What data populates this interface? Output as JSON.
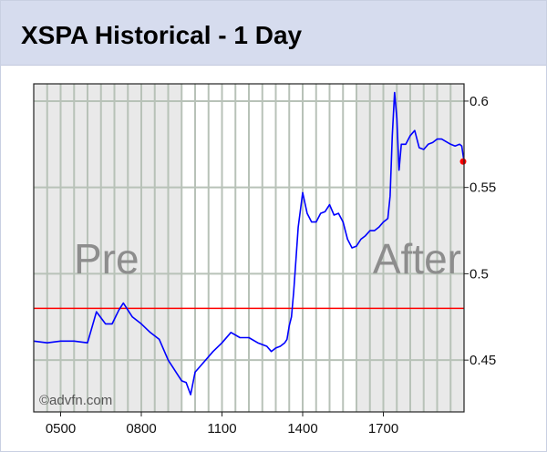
{
  "header": {
    "title": "XSPA Historical - 1 Day"
  },
  "chart_data": {
    "type": "line",
    "series": [
      {
        "x": [
          "04:00",
          "04:30",
          "05:00",
          "05:30",
          "06:00",
          "06:20",
          "06:40",
          "06:55",
          "07:10",
          "07:20",
          "07:40",
          "08:00",
          "08:20",
          "08:40",
          "08:50",
          "09:00",
          "09:10",
          "09:20",
          "09:30",
          "09:40",
          "09:50",
          "10:00",
          "10:20",
          "10:40",
          "11:00",
          "11:20",
          "11:40",
          "12:00",
          "12:20",
          "12:40",
          "12:50",
          "13:00",
          "13:10",
          "13:20",
          "13:25",
          "13:30",
          "13:35",
          "13:40",
          "13:45",
          "13:50",
          "14:00",
          "14:10",
          "14:20",
          "14:30",
          "14:40",
          "14:50",
          "15:00",
          "15:10",
          "15:20",
          "15:30",
          "15:40",
          "15:50",
          "16:00",
          "16:10",
          "16:20",
          "16:30",
          "16:40",
          "16:50",
          "17:00",
          "17:05",
          "17:10",
          "17:15",
          "17:20",
          "17:25",
          "17:30",
          "17:35",
          "17:40",
          "17:50",
          "18:00",
          "18:10",
          "18:20",
          "18:30",
          "18:40",
          "18:50",
          "19:00",
          "19:10",
          "19:30",
          "19:40",
          "19:50",
          "19:55",
          "20:00"
        ],
        "values": [
          0.461,
          0.46,
          0.461,
          0.461,
          0.46,
          0.478,
          0.471,
          0.471,
          0.479,
          0.483,
          0.475,
          0.471,
          0.466,
          0.462,
          0.456,
          0.45,
          0.446,
          0.442,
          0.438,
          0.437,
          0.43,
          0.443,
          0.449,
          0.455,
          0.46,
          0.466,
          0.463,
          0.463,
          0.46,
          0.458,
          0.455,
          0.457,
          0.458,
          0.46,
          0.462,
          0.47,
          0.475,
          0.49,
          0.508,
          0.527,
          0.547,
          0.535,
          0.53,
          0.53,
          0.535,
          0.536,
          0.54,
          0.534,
          0.535,
          0.53,
          0.52,
          0.515,
          0.516,
          0.52,
          0.522,
          0.525,
          0.525,
          0.527,
          0.53,
          0.531,
          0.532,
          0.545,
          0.58,
          0.605,
          0.59,
          0.56,
          0.575,
          0.575,
          0.58,
          0.583,
          0.573,
          0.572,
          0.575,
          0.576,
          0.578,
          0.578,
          0.575,
          0.574,
          0.575,
          0.574,
          0.565
        ]
      }
    ],
    "reference_line": 0.48,
    "last_price": 0.565,
    "x_ticks": [
      "0500",
      "0800",
      "1100",
      "1400",
      "1700"
    ],
    "y_ticks": [
      "0.6",
      "0.55",
      "0.5",
      "0.45"
    ],
    "y_range": [
      0.42,
      0.61
    ],
    "x_range": [
      "04:00",
      "20:00"
    ],
    "pre_market": {
      "label": "Pre",
      "from": "04:00",
      "to": "09:30"
    },
    "after_hours": {
      "label": "After",
      "from": "16:00",
      "to": "20:00"
    },
    "watermark": "©advfn.com",
    "grid": true,
    "colors": {
      "line": "#0000ff",
      "reference": "#ff0000",
      "marker": "#ff0000",
      "session_shade": "#e9e9e9",
      "grid": "#b8c2b8"
    }
  }
}
